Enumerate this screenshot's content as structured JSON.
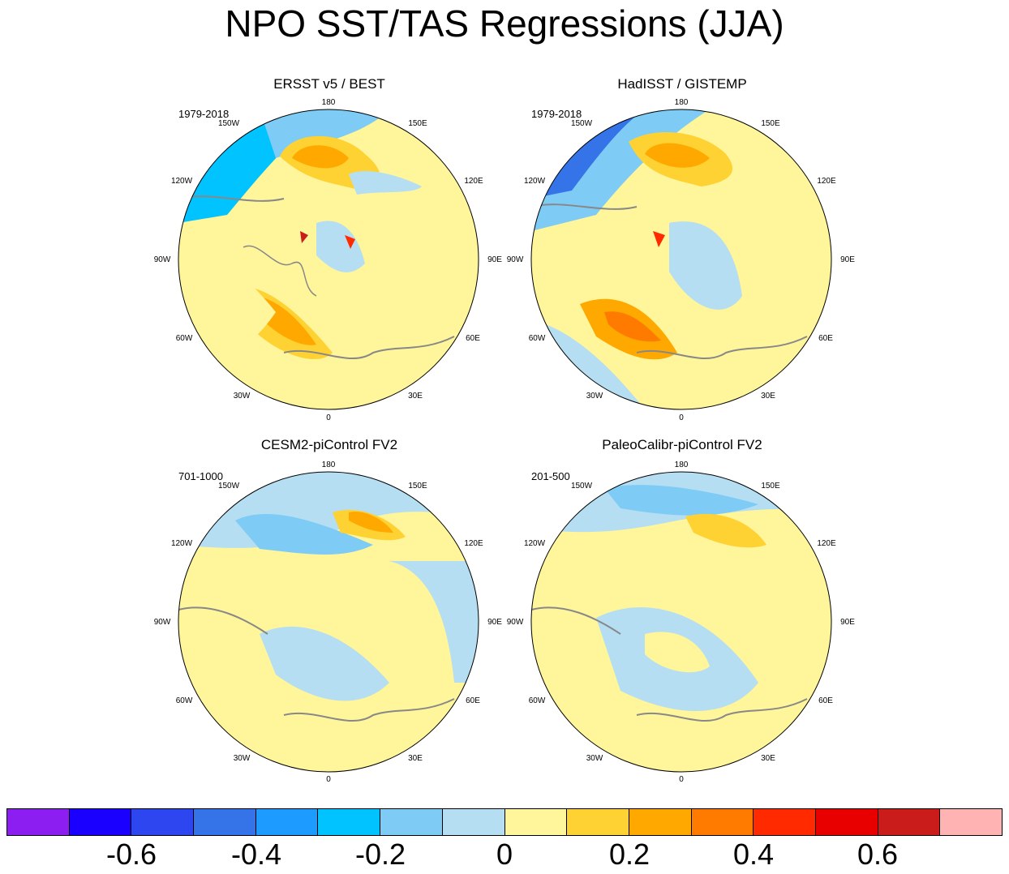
{
  "title": "NPO SST/TAS Regressions (JJA)",
  "panels": [
    {
      "title": "ERSST v5 / BEST",
      "period": "1979-2018"
    },
    {
      "title": "HadISST / GISTEMP",
      "period": "1979-2018"
    },
    {
      "title": "CESM2-piControl FV2",
      "period": "701-1000"
    },
    {
      "title": "PaleoCalibr-piControl FV2",
      "period": "201-500"
    }
  ],
  "lon_labels": {
    "top": "180",
    "upper_left": "150W",
    "upper_right": "150E",
    "left_upper": "120W",
    "right_upper": "120E",
    "left": "90W",
    "right": "90E",
    "left_lower": "60W",
    "right_lower": "60E",
    "lower_left": "30W",
    "lower_right": "30E",
    "bottom": "0"
  },
  "colorbar": {
    "colors": [
      "#8d1ef2",
      "#1a00ff",
      "#2d46ef",
      "#3574e8",
      "#1e9bff",
      "#00c3ff",
      "#7ecbf5",
      "#b5def2",
      "#fff59a",
      "#ffd233",
      "#ffa800",
      "#ff7b00",
      "#ff2a00",
      "#e80000",
      "#cb1c1c",
      "#ffb3b3"
    ],
    "labels": [
      "-0.6",
      "-0.4",
      "-0.2",
      "0",
      "0.2",
      "0.4",
      "0.6"
    ]
  }
}
